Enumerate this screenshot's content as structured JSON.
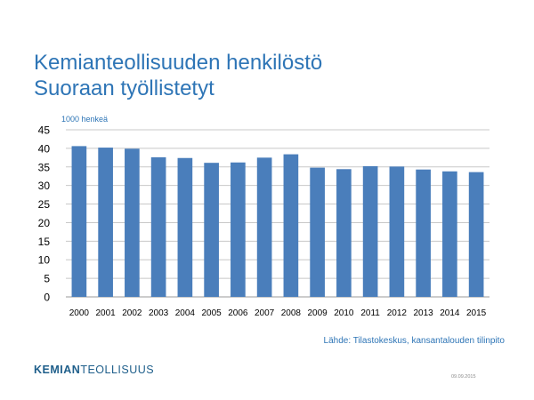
{
  "slide": {
    "title_line1": "Kemianteollisuuden henkilöstö",
    "title_line2": "Suoraan työllistetyt",
    "source": "Lähde: Tilastokeskus, kansantalouden tilinpito",
    "logo_bold": "KEMIAN",
    "logo_light": "TEOLLISUUS",
    "date": "09.09.2015"
  },
  "colors": {
    "title": "#2e75b6",
    "bar": "#4a7ebb",
    "grid": "#c8c8c8",
    "logo": "#1f5f8b"
  },
  "chart_data": {
    "type": "bar",
    "title": "",
    "unit_label": "1000 henkeä",
    "xlabel": "",
    "ylabel": "",
    "ylim": [
      0,
      45
    ],
    "yticks": [
      0,
      5,
      10,
      15,
      20,
      25,
      30,
      35,
      40,
      45
    ],
    "grid": true,
    "legend": "none",
    "categories": [
      "2000",
      "2001",
      "2002",
      "2003",
      "2004",
      "2005",
      "2006",
      "2007",
      "2008",
      "2009",
      "2010",
      "2011",
      "2012",
      "2013",
      "2014",
      "2015"
    ],
    "values": [
      40.6,
      40.2,
      39.9,
      37.6,
      37.4,
      36.1,
      36.2,
      37.5,
      38.4,
      34.8,
      34.4,
      35.2,
      35.1,
      34.3,
      33.8,
      33.6
    ]
  }
}
